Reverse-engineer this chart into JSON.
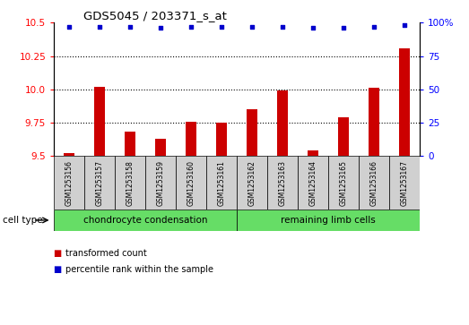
{
  "title": "GDS5045 / 203371_s_at",
  "samples": [
    "GSM1253156",
    "GSM1253157",
    "GSM1253158",
    "GSM1253159",
    "GSM1253160",
    "GSM1253161",
    "GSM1253162",
    "GSM1253163",
    "GSM1253164",
    "GSM1253165",
    "GSM1253166",
    "GSM1253167"
  ],
  "bar_values": [
    9.52,
    10.02,
    9.68,
    9.63,
    9.76,
    9.75,
    9.85,
    9.99,
    9.54,
    9.79,
    10.01,
    10.31
  ],
  "percentile_values": [
    97,
    97,
    97,
    96,
    97,
    97,
    97,
    97,
    96,
    96,
    97,
    98
  ],
  "bar_color": "#cc0000",
  "percentile_color": "#0000cc",
  "ylim_left": [
    9.5,
    10.5
  ],
  "ylim_right": [
    0,
    100
  ],
  "yticks_left": [
    9.5,
    9.75,
    10.0,
    10.25,
    10.5
  ],
  "yticks_right": [
    0,
    25,
    50,
    75,
    100
  ],
  "ytick_labels_right": [
    "0",
    "25",
    "50",
    "75",
    "100%"
  ],
  "grid_values": [
    9.75,
    10.0,
    10.25
  ],
  "cell_types": [
    {
      "label": "chondrocyte condensation",
      "start": 0,
      "end": 6,
      "color": "#66dd66"
    },
    {
      "label": "remaining limb cells",
      "start": 6,
      "end": 12,
      "color": "#66dd66"
    }
  ],
  "cell_type_label": "cell type",
  "legend_items": [
    {
      "label": "transformed count",
      "color": "#cc0000"
    },
    {
      "label": "percentile rank within the sample",
      "color": "#0000cc"
    }
  ],
  "bar_width": 0.35,
  "sample_box_color": "#d0d0d0",
  "bg_color": "#ffffff"
}
